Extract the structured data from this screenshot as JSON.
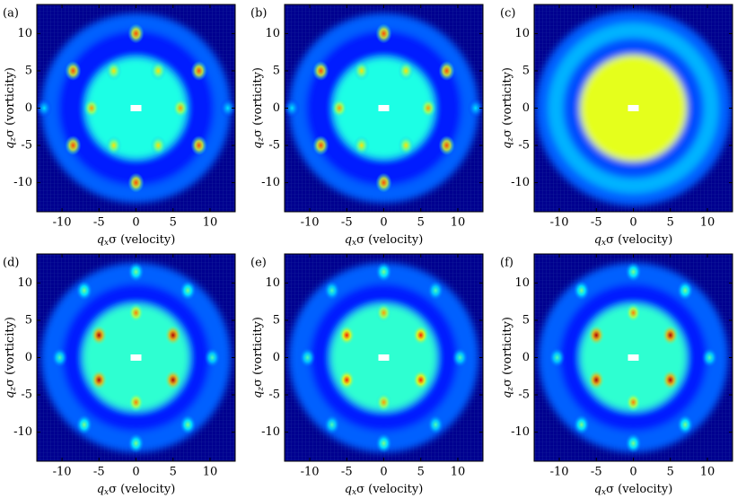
{
  "chart_data": [
    {
      "type": "heatmap",
      "label": "(a)",
      "xlabel_var": "q",
      "xlabel_sub": "x",
      "xlabel_text": "σ (velocity)",
      "ylabel_var": "q",
      "ylabel_sub": "z",
      "ylabel_text": "σ (vorticity)",
      "xlim": [
        -13.4,
        13.4
      ],
      "ylim": [
        -13.9,
        13.9
      ],
      "xticks": [
        -10,
        -5,
        0,
        5,
        10
      ],
      "yticks": [
        -10,
        -5,
        0,
        5,
        10
      ],
      "rings": {
        "radius": [
          12.8,
          10.5,
          6.8
        ],
        "values": [
          0.22,
          0.15,
          0.4
        ]
      },
      "spots": {
        "x": [
          0,
          0,
          -8.5,
          8.5,
          -8.5,
          8.5,
          -6,
          6,
          -3,
          3,
          -3,
          3,
          -12.4,
          12.4
        ],
        "y": [
          10,
          -10,
          5,
          5,
          -5,
          -5,
          0,
          0,
          5,
          5,
          -5,
          -5,
          0,
          0
        ],
        "values": [
          0.8,
          0.8,
          0.8,
          0.8,
          0.8,
          0.8,
          0.72,
          0.72,
          0.65,
          0.65,
          0.65,
          0.65,
          0.35,
          0.35
        ]
      }
    },
    {
      "type": "heatmap",
      "label": "(b)",
      "xlabel_var": "q",
      "xlabel_sub": "x",
      "xlabel_text": "σ (velocity)",
      "ylabel_var": "q",
      "ylabel_sub": "z",
      "ylabel_text": "σ (vorticity)",
      "xlim": [
        -13.4,
        13.4
      ],
      "ylim": [
        -13.9,
        13.9
      ],
      "xticks": [
        -10,
        -5,
        0,
        5,
        10
      ],
      "yticks": [
        -10,
        -5,
        0,
        5,
        10
      ],
      "rings": {
        "radius": [
          12.8,
          10.5,
          6.8
        ],
        "values": [
          0.22,
          0.15,
          0.4
        ]
      },
      "spots": {
        "x": [
          0,
          0,
          -8.5,
          8.5,
          -8.5,
          8.5,
          -6,
          6,
          -3,
          3,
          -3,
          3,
          -12.4,
          12.4
        ],
        "y": [
          10,
          -10,
          5,
          5,
          -5,
          -5,
          0,
          0,
          5,
          5,
          -5,
          -5,
          0,
          0
        ],
        "values": [
          0.8,
          0.8,
          0.8,
          0.8,
          0.8,
          0.8,
          0.72,
          0.72,
          0.65,
          0.65,
          0.65,
          0.65,
          0.35,
          0.35
        ]
      }
    },
    {
      "type": "heatmap",
      "label": "(c)",
      "xlabel_var": "q",
      "xlabel_sub": "x",
      "xlabel_text": "σ (velocity)",
      "ylabel_var": "q",
      "ylabel_sub": "z",
      "ylabel_text": "σ (vorticity)",
      "xlim": [
        -13.4,
        13.4
      ],
      "ylim": [
        -13.9,
        13.9
      ],
      "xticks": [
        -10,
        -5,
        0,
        5,
        10
      ],
      "yticks": [
        -10,
        -5,
        0,
        5,
        10
      ],
      "rings": {
        "radius": [
          13.2,
          11.5,
          9.5,
          7.2
        ],
        "values": [
          0.22,
          0.3,
          0.2,
          0.6
        ]
      },
      "spots": {
        "x": [],
        "y": [],
        "values": []
      }
    },
    {
      "type": "heatmap",
      "label": "(d)",
      "xlabel_var": "q",
      "xlabel_sub": "x",
      "xlabel_text": "σ (velocity)",
      "ylabel_var": "q",
      "ylabel_sub": "z",
      "ylabel_text": "σ (vorticity)",
      "xlim": [
        -13.4,
        13.4
      ],
      "ylim": [
        -13.9,
        13.9
      ],
      "xticks": [
        -10,
        -5,
        0,
        5,
        10
      ],
      "yticks": [
        -10,
        -5,
        0,
        5,
        10
      ],
      "rings": {
        "radius": [
          12.8,
          10.0,
          7.2
        ],
        "values": [
          0.22,
          0.15,
          0.42
        ]
      },
      "spots": {
        "x": [
          -5,
          5,
          -5,
          5,
          0,
          0,
          0,
          0,
          -7,
          7,
          -7,
          7,
          -10.3,
          10.3
        ],
        "y": [
          3,
          3,
          -3,
          -3,
          6,
          -6,
          11.5,
          -11.5,
          9,
          9,
          -9,
          -9,
          0,
          0
        ],
        "values": [
          0.95,
          0.95,
          0.95,
          0.95,
          0.75,
          0.75,
          0.5,
          0.5,
          0.5,
          0.5,
          0.5,
          0.5,
          0.45,
          0.45
        ]
      }
    },
    {
      "type": "heatmap",
      "label": "(e)",
      "xlabel_var": "q",
      "xlabel_sub": "x",
      "xlabel_text": "σ (velocity)",
      "ylabel_var": "q",
      "ylabel_sub": "z",
      "ylabel_text": "σ (vorticity)",
      "xlim": [
        -13.4,
        13.4
      ],
      "ylim": [
        -13.9,
        13.9
      ],
      "xticks": [
        -10,
        -5,
        0,
        5,
        10
      ],
      "yticks": [
        -10,
        -5,
        0,
        5,
        10
      ],
      "rings": {
        "radius": [
          12.8,
          10.0,
          7.2
        ],
        "values": [
          0.22,
          0.15,
          0.42
        ]
      },
      "spots": {
        "x": [
          -5,
          5,
          -5,
          5,
          0,
          0,
          0,
          0,
          -7,
          7,
          -7,
          7,
          -10.3,
          10.3
        ],
        "y": [
          3,
          3,
          -3,
          -3,
          6,
          -6,
          11.5,
          -11.5,
          9,
          9,
          -9,
          -9,
          0,
          0
        ],
        "values": [
          0.85,
          0.85,
          0.85,
          0.85,
          0.72,
          0.72,
          0.5,
          0.5,
          0.45,
          0.45,
          0.45,
          0.45,
          0.45,
          0.45
        ]
      }
    },
    {
      "type": "heatmap",
      "label": "(f)",
      "xlabel_var": "q",
      "xlabel_sub": "x",
      "xlabel_text": "σ (velocity)",
      "ylabel_var": "q",
      "ylabel_sub": "z",
      "ylabel_text": "σ (vorticity)",
      "xlim": [
        -13.4,
        13.4
      ],
      "ylim": [
        -13.9,
        13.9
      ],
      "xticks": [
        -10,
        -5,
        0,
        5,
        10
      ],
      "yticks": [
        -10,
        -5,
        0,
        5,
        10
      ],
      "rings": {
        "radius": [
          12.8,
          10.0,
          7.2
        ],
        "values": [
          0.22,
          0.15,
          0.42
        ]
      },
      "spots": {
        "x": [
          -5,
          5,
          -5,
          5,
          0,
          0,
          0,
          0,
          -7,
          7,
          -7,
          7,
          -10.3,
          10.3
        ],
        "y": [
          3,
          3,
          -3,
          -3,
          6,
          -6,
          11.5,
          -11.5,
          9,
          9,
          -9,
          -9,
          0,
          0
        ],
        "values": [
          0.95,
          0.95,
          0.95,
          0.95,
          0.75,
          0.75,
          0.5,
          0.5,
          0.5,
          0.5,
          0.5,
          0.5,
          0.45,
          0.45
        ]
      }
    }
  ]
}
